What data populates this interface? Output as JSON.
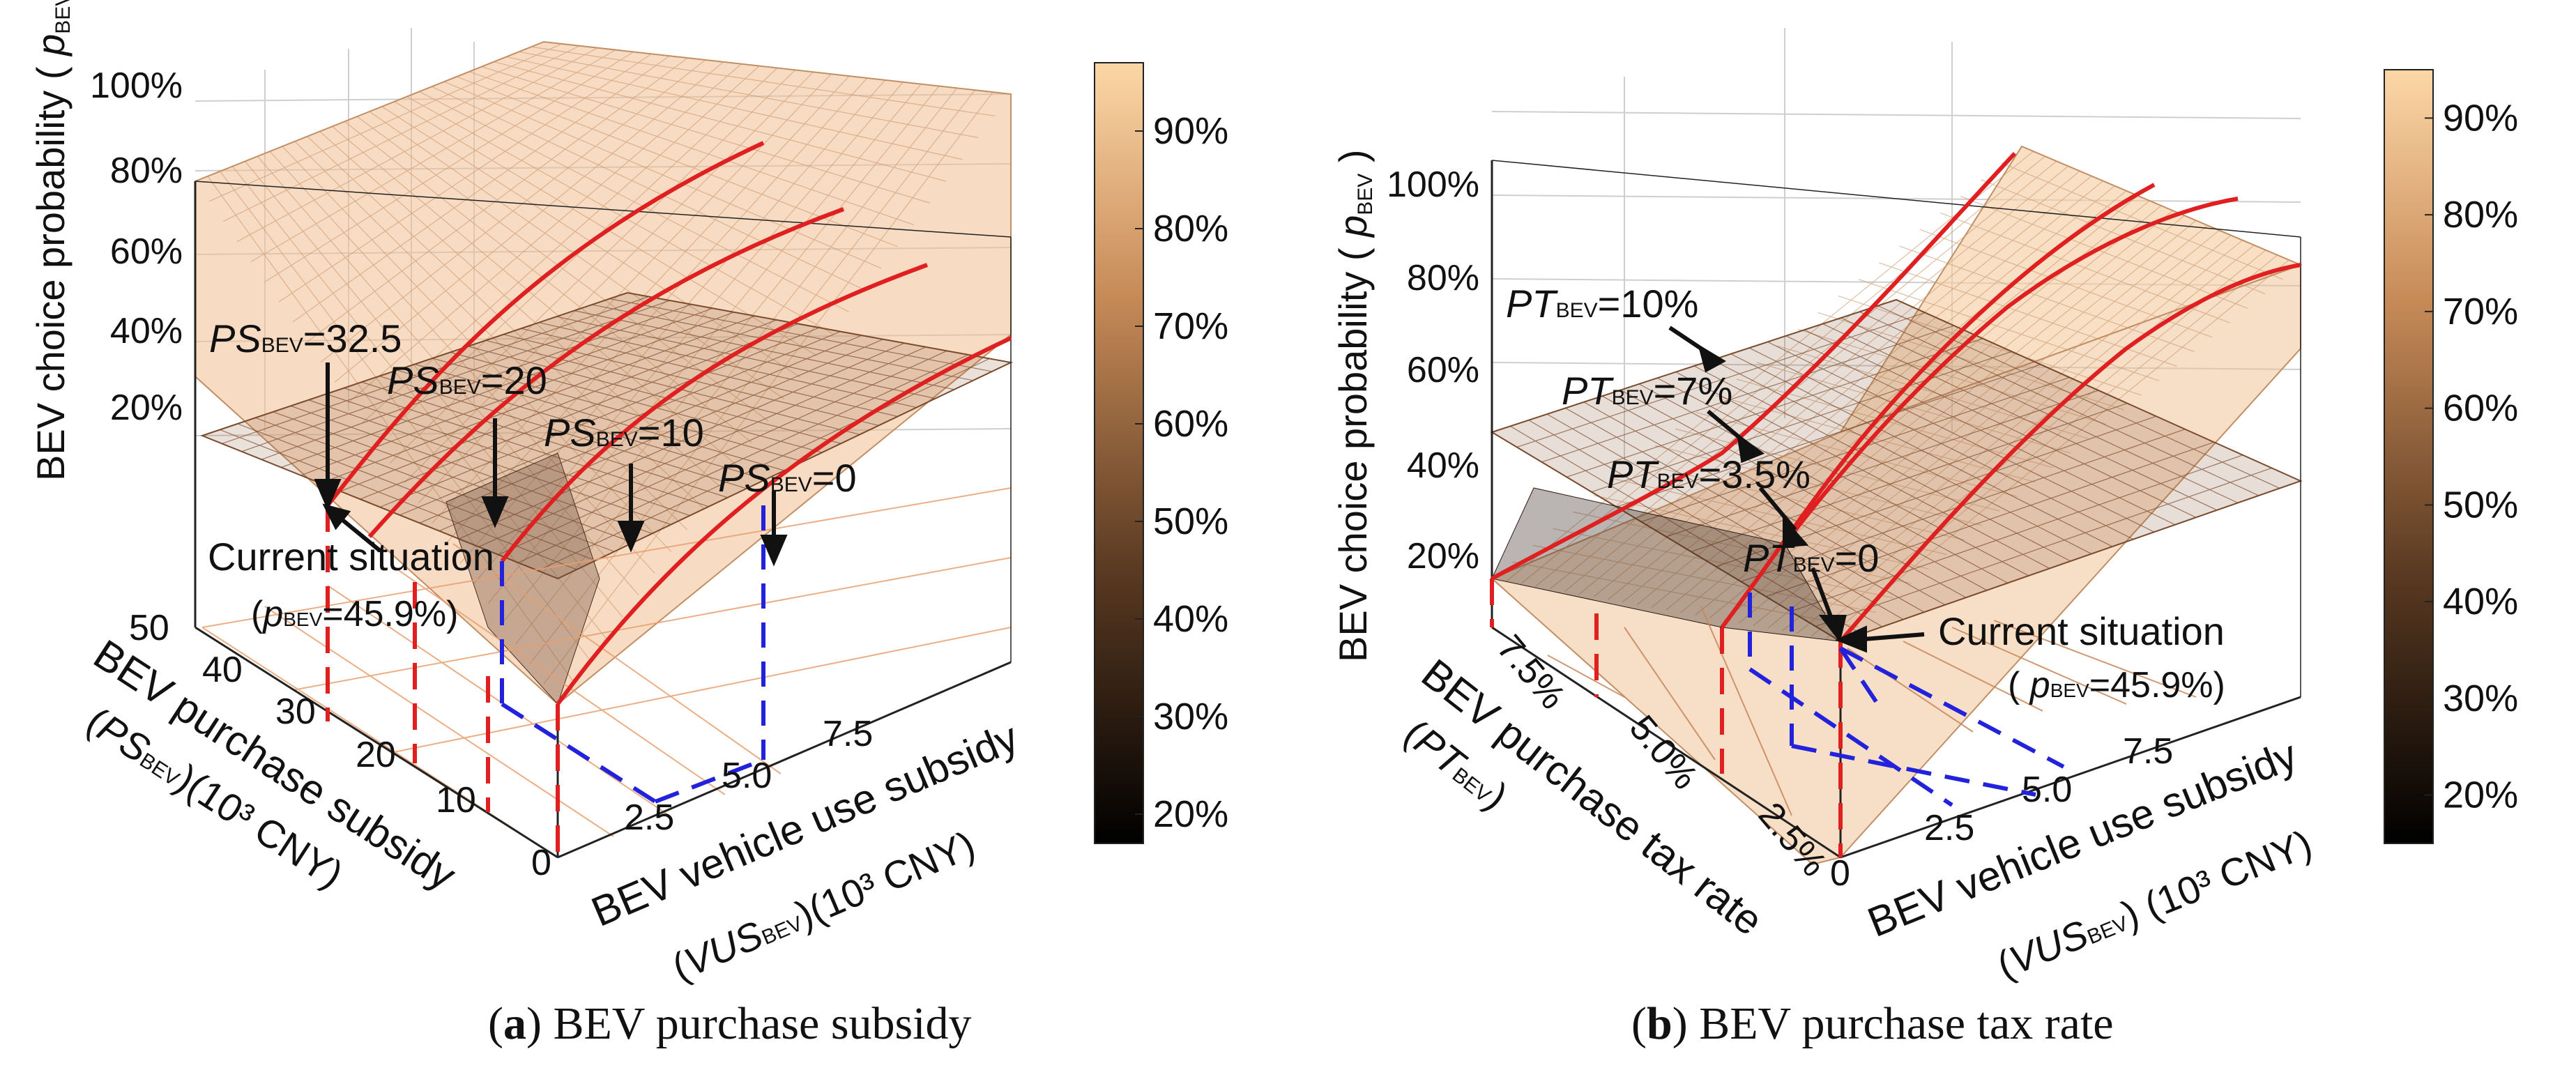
{
  "colors": {
    "surface_low": "#1a0f08",
    "surface_mid": "#a86a3c",
    "surface_high": "#fbd3a3",
    "policy_line": "#e02020",
    "current_guide": "#2222dd",
    "mesh": "#8a5a3a",
    "box": "#222222",
    "grid": "#cfcfcf"
  },
  "chart_data": [
    {
      "id": "a",
      "type": "surface3d",
      "title": "BEV purchase subsidy",
      "panel_letter": "(a)",
      "zlabel": "BEV choice probability",
      "zlabel_symbol": "p",
      "zlabel_subscript": "BEV",
      "z_ticks": [
        "20%",
        "40%",
        "60%",
        "80%",
        "100%"
      ],
      "zlim": [
        0,
        100
      ],
      "x_axis": {
        "label": "BEV vehicle use subsidy",
        "label_symbol": "VUS",
        "label_subscript": "BEV",
        "unit": "(10³ CNY)",
        "ticks": [
          "0",
          "2.5",
          "5.0",
          "7.5"
        ],
        "range": [
          0,
          10
        ]
      },
      "y_axis": {
        "label": "BEV purchase subsidy",
        "label_symbol": "PS",
        "label_subscript": "BEV",
        "unit": "(10³ CNY)",
        "ticks": [
          "0",
          "10",
          "20",
          "30",
          "40",
          "50"
        ],
        "range": [
          0,
          50
        ]
      },
      "colorbar": {
        "ticks": [
          "20%",
          "30%",
          "40%",
          "50%",
          "60%",
          "70%",
          "80%",
          "90%"
        ],
        "range": [
          17,
          97
        ]
      },
      "policy_lines": [
        {
          "symbol": "PS",
          "subscript": "BEV",
          "value": "=32.5",
          "y": 32.5
        },
        {
          "symbol": "PS",
          "subscript": "BEV",
          "value": "=20",
          "y": 20
        },
        {
          "symbol": "PS",
          "subscript": "BEV",
          "value": "=10",
          "y": 10
        },
        {
          "symbol": "PS",
          "subscript": "BEV",
          "value": "=0",
          "y": 0
        }
      ],
      "current_situation": {
        "label": "Current situation",
        "value_prefix": "(",
        "symbol": "p",
        "subscript": "BEV",
        "value": "=45.9%)",
        "probability": 45.9,
        "x": 0,
        "y": 32.5
      }
    },
    {
      "id": "b",
      "type": "surface3d",
      "title": "BEV purchase tax rate",
      "panel_letter": "(b)",
      "zlabel": "BEV choice probability",
      "zlabel_symbol": "p",
      "zlabel_subscript": "BEV",
      "z_ticks": [
        "20%",
        "40%",
        "60%",
        "80%",
        "100%"
      ],
      "zlim": [
        0,
        100
      ],
      "x_axis": {
        "label": "BEV vehicle use subsidy",
        "label_symbol": "VUS",
        "label_subscript": "BEV",
        "unit": "(10³ CNY)",
        "ticks": [
          "0",
          "2.5",
          "5.0",
          "7.5"
        ],
        "range": [
          0,
          10
        ]
      },
      "y_axis": {
        "label": "BEV purchase tax rate",
        "label_symbol": "PT",
        "label_subscript": "BEV",
        "unit": "",
        "ticks": [
          "2.5%",
          "5.0%",
          "7.5%"
        ],
        "range": [
          0,
          10
        ]
      },
      "colorbar": {
        "ticks": [
          "20%",
          "30%",
          "40%",
          "50%",
          "60%",
          "70%",
          "80%",
          "90%"
        ],
        "range": [
          15,
          95
        ]
      },
      "policy_lines": [
        {
          "symbol": "PT",
          "subscript": "BEV",
          "value": "=10%",
          "y": 10
        },
        {
          "symbol": "PT",
          "subscript": "BEV",
          "value": "=7%",
          "y": 7
        },
        {
          "symbol": "PT",
          "subscript": "BEV",
          "value": "=3.5%",
          "y": 3.5
        },
        {
          "symbol": "PT",
          "subscript": "BEV",
          "value": "=0",
          "y": 0
        }
      ],
      "current_situation": {
        "label": "Current situation",
        "value_prefix": "(",
        "symbol": "p",
        "subscript": "BEV",
        "value": "=45.9%)",
        "probability": 45.9,
        "x": 0,
        "y": 0
      }
    }
  ]
}
